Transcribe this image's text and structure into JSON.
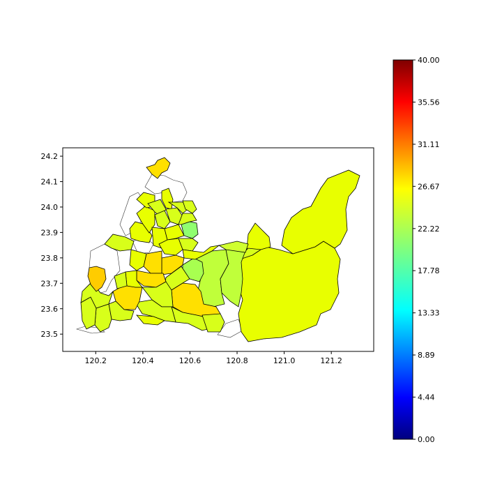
{
  "map": {
    "x_ticks": [
      "120.2",
      "120.4",
      "120.6",
      "120.8",
      "121.0",
      "121.2"
    ],
    "y_ticks": [
      "23.5",
      "23.6",
      "23.7",
      "23.8",
      "23.9",
      "24.0",
      "24.1",
      "24.2"
    ],
    "xlim": [
      120.06,
      121.38
    ],
    "ylim": [
      23.432,
      24.233
    ]
  },
  "colorbar": {
    "colormap": "jet",
    "min": 0.0,
    "max": 40.0,
    "tick_labels": [
      "40.00",
      "35.56",
      "31.11",
      "26.67",
      "22.22",
      "17.78",
      "13.33",
      "8.89",
      "4.44",
      "0.00"
    ]
  },
  "colors": {
    "yellow": "#f0ff00",
    "yellow_green": "#d8ff1a",
    "lime": "#c0ff3a",
    "light_green": "#90ff70",
    "gold": "#ffe000",
    "amber": "#ffcc00"
  }
}
